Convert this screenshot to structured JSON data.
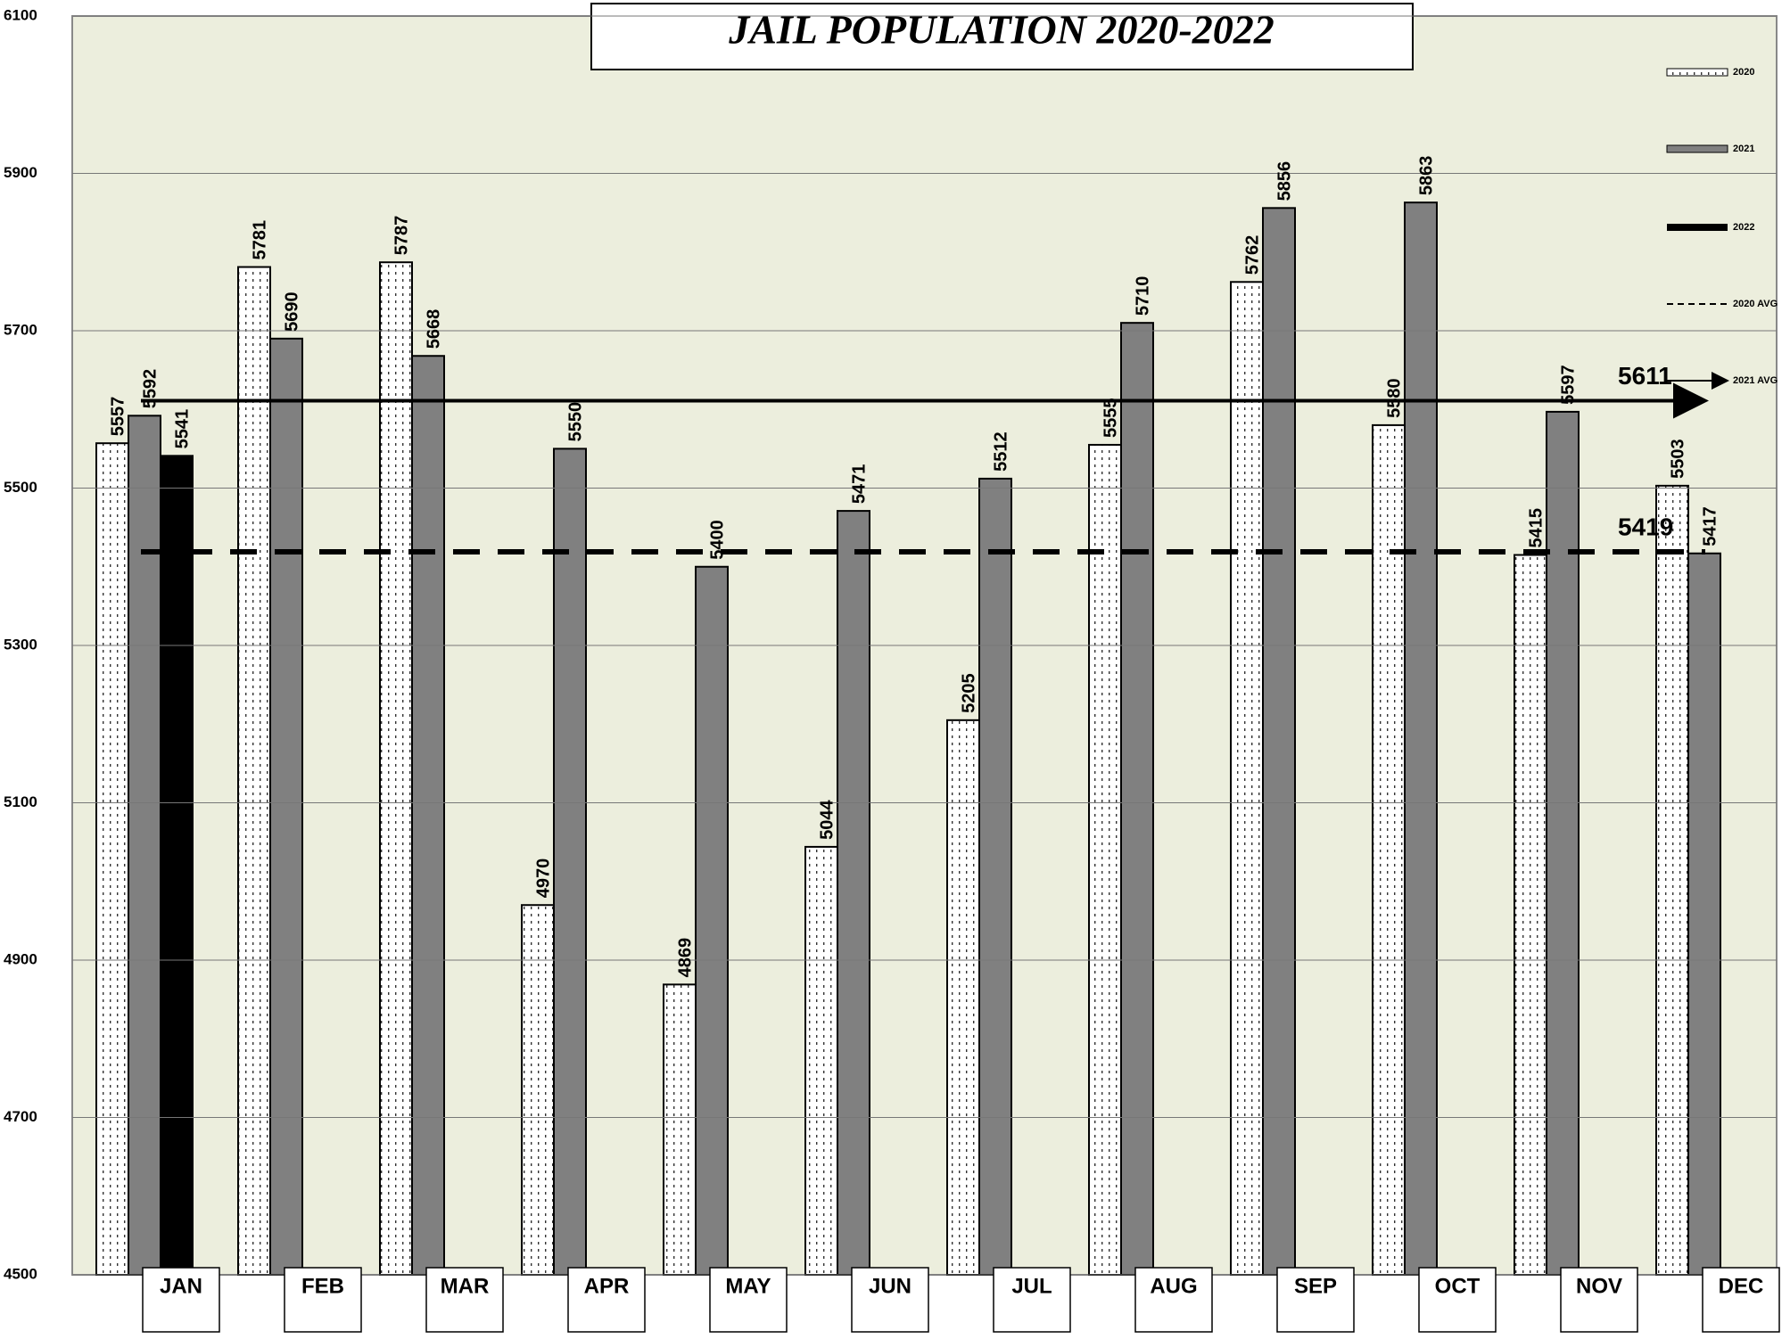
{
  "chart_data": {
    "type": "bar",
    "title": "JAIL POPULATION 2020-2022",
    "categories": [
      "JAN",
      "FEB",
      "MAR",
      "APR",
      "MAY",
      "JUN",
      "JUL",
      "AUG",
      "SEP",
      "OCT",
      "NOV",
      "DEC"
    ],
    "series": [
      {
        "name": "2020",
        "color": "#ffffff",
        "values": [
          5557,
          5781,
          5787,
          4970,
          4869,
          5044,
          5205,
          5555,
          5762,
          5580,
          5415,
          5503
        ]
      },
      {
        "name": "2021",
        "color": "#808080",
        "values": [
          5592,
          5690,
          5668,
          5550,
          5400,
          5471,
          5512,
          5710,
          5856,
          5863,
          5597,
          5417
        ]
      },
      {
        "name": "2022",
        "color": "#000000",
        "values": [
          5541,
          null,
          null,
          null,
          null,
          null,
          null,
          null,
          null,
          null,
          null,
          null
        ]
      }
    ],
    "averages": [
      {
        "name": "2020 AVG",
        "value": 5419,
        "style": "dashed"
      },
      {
        "name": "2021 AVG",
        "value": 5611,
        "style": "solid"
      }
    ],
    "ylim": [
      4500,
      6100
    ],
    "yticks": [
      4500,
      4700,
      4900,
      5100,
      5300,
      5500,
      5700,
      5900,
      6100
    ],
    "grid": true,
    "legend": "right"
  }
}
